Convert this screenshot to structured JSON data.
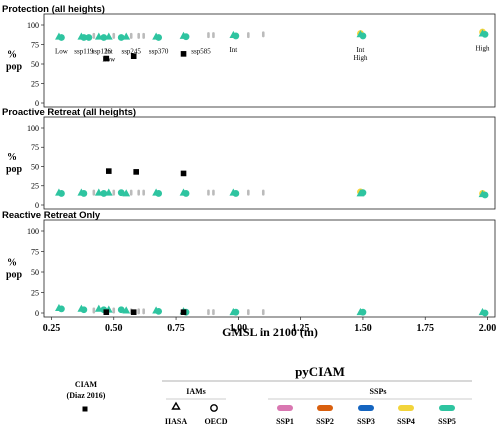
{
  "chart_data": {
    "type": "scatter",
    "xlabel": "GMSL in 2100 (m)",
    "xlim": [
      0.22,
      2.03
    ],
    "x_ticks": [
      "0.25",
      "0.50",
      "0.75",
      "1.00",
      "1.25",
      "1.50",
      "1.75",
      "2.00"
    ],
    "ylim": [
      0,
      100
    ],
    "y_ticks": [
      "0",
      "25",
      "50",
      "75",
      "100"
    ],
    "ylabel_line1": "%",
    "ylabel_line2": "pop",
    "grid": false,
    "ssp_colors": {
      "SSP1": "#d977b1",
      "SSP2": "#d95f0e",
      "SSP3": "#1565c0",
      "SSP4": "#f2d43b",
      "SSP5": "#2ec4a0"
    },
    "grey_color": "#bbbbbb",
    "panels": [
      {
        "title": "Protection (all heights)",
        "ciam_diaz_2016": [
          [
            0.47,
            57
          ],
          [
            0.58,
            60
          ],
          [
            0.78,
            63
          ]
        ],
        "pyciam_points": [
          {
            "x": 0.28,
            "y": 85,
            "ssp": "SSP5",
            "iam": "IIASA"
          },
          {
            "x": 0.29,
            "y": 84,
            "ssp": "SSP5",
            "iam": "OECD"
          },
          {
            "x": 0.37,
            "y": 85,
            "ssp": "SSP5",
            "iam": "IIASA"
          },
          {
            "x": 0.38,
            "y": 84,
            "ssp": "SSP5",
            "iam": "OECD"
          },
          {
            "x": 0.4,
            "y": 84,
            "ssp": "SSP5",
            "iam": "OECD"
          },
          {
            "x": 0.44,
            "y": 85,
            "ssp": "SSP5",
            "iam": "IIASA"
          },
          {
            "x": 0.46,
            "y": 84,
            "ssp": "SSP5",
            "iam": "OECD"
          },
          {
            "x": 0.48,
            "y": 85,
            "ssp": "SSP5",
            "iam": "IIASA"
          },
          {
            "x": 0.53,
            "y": 84,
            "ssp": "SSP5",
            "iam": "OECD"
          },
          {
            "x": 0.55,
            "y": 85,
            "ssp": "SSP5",
            "iam": "IIASA"
          },
          {
            "x": 0.67,
            "y": 85,
            "ssp": "SSP5",
            "iam": "IIASA"
          },
          {
            "x": 0.68,
            "y": 84,
            "ssp": "SSP5",
            "iam": "OECD"
          },
          {
            "x": 0.78,
            "y": 86,
            "ssp": "SSP5",
            "iam": "IIASA"
          },
          {
            "x": 0.79,
            "y": 85,
            "ssp": "SSP5",
            "iam": "OECD"
          },
          {
            "x": 0.98,
            "y": 87,
            "ssp": "SSP5",
            "iam": "IIASA"
          },
          {
            "x": 0.99,
            "y": 86,
            "ssp": "SSP5",
            "iam": "OECD"
          },
          {
            "x": 1.49,
            "y": 89,
            "ssp": "SSP4",
            "iam": "OECD"
          },
          {
            "x": 1.49,
            "y": 88,
            "ssp": "SSP5",
            "iam": "IIASA"
          },
          {
            "x": 1.5,
            "y": 86,
            "ssp": "SSP5",
            "iam": "OECD"
          },
          {
            "x": 1.98,
            "y": 91,
            "ssp": "SSP4",
            "iam": "OECD"
          },
          {
            "x": 1.98,
            "y": 89,
            "ssp": "SSP5",
            "iam": "IIASA"
          },
          {
            "x": 1.99,
            "y": 88,
            "ssp": "SSP5",
            "iam": "OECD"
          }
        ],
        "grey_points": [
          [
            0.42,
            86
          ],
          [
            0.5,
            86
          ],
          [
            0.57,
            86
          ],
          [
            0.6,
            86
          ],
          [
            0.62,
            86
          ],
          [
            0.88,
            87
          ],
          [
            0.9,
            87
          ],
          [
            1.04,
            87
          ],
          [
            1.1,
            88
          ]
        ],
        "annotations": [
          {
            "text": "Low",
            "x": 0.29,
            "y": 84,
            "side": "below"
          },
          {
            "text": "ssp119",
            "x": 0.38,
            "y": 84,
            "side": "below"
          },
          {
            "text": "ssp126",
            "x": 0.45,
            "y": 84,
            "side": "below"
          },
          {
            "text": "Int",
            "x": 0.48,
            "y": 84,
            "side": "below"
          },
          {
            "text": "Low",
            "x": 0.48,
            "y": 84,
            "side": "below2"
          },
          {
            "text": "ssp245",
            "x": 0.57,
            "y": 84,
            "side": "below"
          },
          {
            "text": "ssp370",
            "x": 0.68,
            "y": 84,
            "side": "below"
          },
          {
            "text": "ssp585",
            "x": 0.85,
            "y": 84,
            "side": "below"
          },
          {
            "text": "Int",
            "x": 0.98,
            "y": 86,
            "side": "below"
          },
          {
            "text": "Int",
            "x": 1.49,
            "y": 86,
            "side": "below"
          },
          {
            "text": "High",
            "x": 1.49,
            "y": 86,
            "side": "below2"
          },
          {
            "text": "High",
            "x": 1.98,
            "y": 88,
            "side": "below"
          }
        ]
      },
      {
        "title": "Proactive Retreat (all heights)",
        "ciam_diaz_2016": [
          [
            0.48,
            44
          ],
          [
            0.59,
            43
          ],
          [
            0.78,
            41
          ]
        ],
        "pyciam_points": [
          {
            "x": 0.28,
            "y": 16,
            "ssp": "SSP5",
            "iam": "IIASA"
          },
          {
            "x": 0.29,
            "y": 15,
            "ssp": "SSP5",
            "iam": "OECD"
          },
          {
            "x": 0.37,
            "y": 16,
            "ssp": "SSP5",
            "iam": "IIASA"
          },
          {
            "x": 0.38,
            "y": 15,
            "ssp": "SSP5",
            "iam": "OECD"
          },
          {
            "x": 0.44,
            "y": 16,
            "ssp": "SSP5",
            "iam": "IIASA"
          },
          {
            "x": 0.46,
            "y": 15,
            "ssp": "SSP5",
            "iam": "OECD"
          },
          {
            "x": 0.48,
            "y": 16,
            "ssp": "SSP5",
            "iam": "IIASA"
          },
          {
            "x": 0.53,
            "y": 16,
            "ssp": "SSP5",
            "iam": "OECD"
          },
          {
            "x": 0.55,
            "y": 15,
            "ssp": "SSP5",
            "iam": "IIASA"
          },
          {
            "x": 0.67,
            "y": 16,
            "ssp": "SSP5",
            "iam": "IIASA"
          },
          {
            "x": 0.68,
            "y": 15,
            "ssp": "SSP5",
            "iam": "OECD"
          },
          {
            "x": 0.78,
            "y": 16,
            "ssp": "SSP5",
            "iam": "IIASA"
          },
          {
            "x": 0.79,
            "y": 15,
            "ssp": "SSP5",
            "iam": "OECD"
          },
          {
            "x": 0.98,
            "y": 16,
            "ssp": "SSP5",
            "iam": "IIASA"
          },
          {
            "x": 0.99,
            "y": 15,
            "ssp": "SSP5",
            "iam": "OECD"
          },
          {
            "x": 1.49,
            "y": 17,
            "ssp": "SSP4",
            "iam": "OECD"
          },
          {
            "x": 1.49,
            "y": 15,
            "ssp": "SSP5",
            "iam": "IIASA"
          },
          {
            "x": 1.5,
            "y": 16,
            "ssp": "SSP5",
            "iam": "OECD"
          },
          {
            "x": 1.98,
            "y": 15,
            "ssp": "SSP4",
            "iam": "OECD"
          },
          {
            "x": 1.98,
            "y": 14,
            "ssp": "SSP5",
            "iam": "IIASA"
          },
          {
            "x": 1.99,
            "y": 13,
            "ssp": "SSP5",
            "iam": "OECD"
          }
        ],
        "grey_points": [
          [
            0.42,
            16
          ],
          [
            0.5,
            16
          ],
          [
            0.57,
            16
          ],
          [
            0.6,
            16
          ],
          [
            0.62,
            16
          ],
          [
            0.88,
            16
          ],
          [
            0.9,
            16
          ],
          [
            1.04,
            16
          ],
          [
            1.1,
            16
          ]
        ],
        "annotations": []
      },
      {
        "title": "Reactive Retreat Only",
        "ciam_diaz_2016": [
          [
            0.47,
            1
          ],
          [
            0.58,
            1
          ],
          [
            0.78,
            1
          ]
        ],
        "pyciam_points": [
          {
            "x": 0.28,
            "y": 6,
            "ssp": "SSP5",
            "iam": "IIASA"
          },
          {
            "x": 0.29,
            "y": 5,
            "ssp": "SSP5",
            "iam": "OECD"
          },
          {
            "x": 0.37,
            "y": 5,
            "ssp": "SSP5",
            "iam": "IIASA"
          },
          {
            "x": 0.38,
            "y": 4,
            "ssp": "SSP5",
            "iam": "OECD"
          },
          {
            "x": 0.44,
            "y": 5,
            "ssp": "SSP5",
            "iam": "IIASA"
          },
          {
            "x": 0.46,
            "y": 4,
            "ssp": "SSP5",
            "iam": "OECD"
          },
          {
            "x": 0.48,
            "y": 4,
            "ssp": "SSP5",
            "iam": "IIASA"
          },
          {
            "x": 0.53,
            "y": 4,
            "ssp": "SSP5",
            "iam": "OECD"
          },
          {
            "x": 0.55,
            "y": 3,
            "ssp": "SSP5",
            "iam": "IIASA"
          },
          {
            "x": 0.67,
            "y": 3,
            "ssp": "SSP5",
            "iam": "IIASA"
          },
          {
            "x": 0.68,
            "y": 2,
            "ssp": "SSP5",
            "iam": "OECD"
          },
          {
            "x": 0.78,
            "y": 2,
            "ssp": "SSP5",
            "iam": "IIASA"
          },
          {
            "x": 0.79,
            "y": 1,
            "ssp": "SSP5",
            "iam": "OECD"
          },
          {
            "x": 0.98,
            "y": 1,
            "ssp": "SSP5",
            "iam": "IIASA"
          },
          {
            "x": 0.99,
            "y": 1,
            "ssp": "SSP5",
            "iam": "OECD"
          },
          {
            "x": 1.49,
            "y": 1,
            "ssp": "SSP5",
            "iam": "IIASA"
          },
          {
            "x": 1.5,
            "y": 1,
            "ssp": "SSP5",
            "iam": "OECD"
          },
          {
            "x": 1.98,
            "y": 1,
            "ssp": "SSP5",
            "iam": "IIASA"
          },
          {
            "x": 1.99,
            "y": 0,
            "ssp": "SSP5",
            "iam": "OECD"
          }
        ],
        "grey_points": [
          [
            0.42,
            3
          ],
          [
            0.5,
            3
          ],
          [
            0.57,
            2
          ],
          [
            0.6,
            2
          ],
          [
            0.62,
            2
          ],
          [
            0.88,
            1
          ],
          [
            0.9,
            1
          ],
          [
            1.04,
            1
          ],
          [
            1.1,
            1
          ]
        ],
        "annotations": []
      }
    ]
  },
  "legend": {
    "ciam_title_line1": "CIAM",
    "ciam_title_line2": "(Diaz 2016)",
    "pyciam_title": "pyCIAM",
    "iams_title": "IAMs",
    "ssps_title": "SSPs",
    "iams": [
      {
        "label": "IIASA",
        "marker": "triangle"
      },
      {
        "label": "OECD",
        "marker": "circle-open"
      }
    ],
    "ssps": [
      {
        "label": "SSP1",
        "color": "#d977b1"
      },
      {
        "label": "SSP2",
        "color": "#d95f0e"
      },
      {
        "label": "SSP3",
        "color": "#1565c0"
      },
      {
        "label": "SSP4",
        "color": "#f2d43b"
      },
      {
        "label": "SSP5",
        "color": "#2ec4a0"
      }
    ]
  }
}
